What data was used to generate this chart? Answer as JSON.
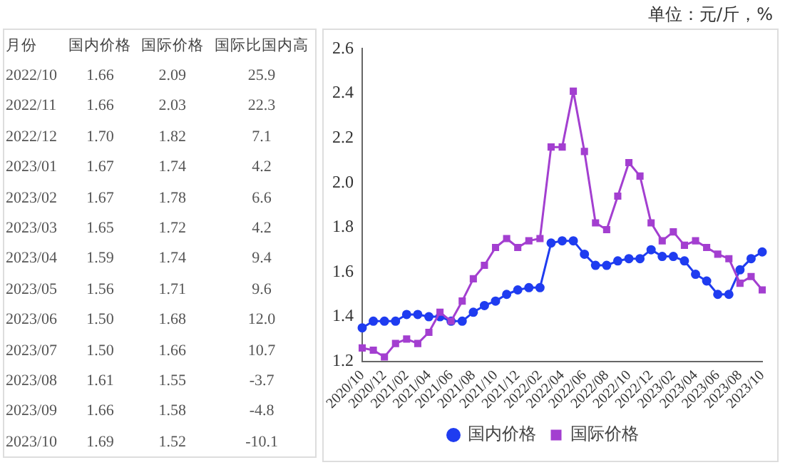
{
  "chart_data": {
    "type": "line",
    "categories": [
      "2020/10",
      null,
      "2020/12",
      null,
      "2021/02",
      null,
      "2021/04",
      null,
      "2021/06",
      null,
      "2021/08",
      null,
      "2021/10",
      null,
      "2021/12",
      null,
      "2022/02",
      null,
      "2022/04",
      null,
      "2022/06",
      null,
      "2022/08",
      null,
      "2022/10",
      null,
      "2022/12",
      null,
      "2023/02",
      null,
      "2023/04",
      null,
      "2023/06",
      null,
      "2023/08",
      null,
      "2023/10"
    ],
    "series": [
      {
        "name": "国内价格",
        "color": "#1f3cf0",
        "marker": "circle",
        "values": [
          1.35,
          1.38,
          1.38,
          1.38,
          1.41,
          1.41,
          1.4,
          1.4,
          1.38,
          1.38,
          1.42,
          1.45,
          1.47,
          1.5,
          1.52,
          1.53,
          1.53,
          1.73,
          1.74,
          1.74,
          1.68,
          1.63,
          1.63,
          1.65,
          1.66,
          1.66,
          1.7,
          1.67,
          1.67,
          1.65,
          1.59,
          1.56,
          1.5,
          1.5,
          1.61,
          1.66,
          1.69
        ]
      },
      {
        "name": "国际价格",
        "color": "#a33fd0",
        "marker": "square",
        "values": [
          1.26,
          1.25,
          1.22,
          1.28,
          1.3,
          1.28,
          1.33,
          1.42,
          1.38,
          1.47,
          1.57,
          1.63,
          1.71,
          1.75,
          1.71,
          1.74,
          1.75,
          2.16,
          2.16,
          2.41,
          2.14,
          1.82,
          1.79,
          1.94,
          2.09,
          2.03,
          1.82,
          1.74,
          1.78,
          1.72,
          1.74,
          1.71,
          1.68,
          1.66,
          1.55,
          1.58,
          1.52
        ]
      }
    ],
    "ylim": [
      1.2,
      2.6
    ],
    "yticks": [
      {
        "value": 1.2,
        "label": "1.2"
      },
      {
        "value": 1.4,
        "label": "1.4"
      },
      {
        "value": 1.6,
        "label": "1.6"
      },
      {
        "value": 1.8,
        "label": "1.8"
      },
      {
        "value": 2.0,
        "label": "2.0"
      },
      {
        "value": 2.2,
        "label": "2.2"
      },
      {
        "value": 2.4,
        "label": "2.4"
      },
      {
        "value": 2.6,
        "label": "2.6"
      }
    ],
    "grid": false,
    "legend": "bottom",
    "line_style": "solid",
    "annotations": [
      "单位：元/斤，%",
      "月份",
      "国内价格",
      "国际价格",
      "国际比国内高",
      "2022/10",
      "1.66",
      "2.09",
      "25.9",
      "2022/11",
      "1.66",
      "2.03",
      "22.3",
      "2022/12",
      "1.70",
      "1.82",
      "7.1",
      "2023/01",
      "1.67",
      "1.74",
      "4.2",
      "2023/02",
      "1.67",
      "1.78",
      "6.6",
      "2023/03",
      "1.65",
      "1.72",
      "4.2",
      "2023/04",
      "1.59",
      "1.74",
      "9.4",
      "2023/05",
      "1.56",
      "1.71",
      "9.6",
      "2023/06",
      "1.50",
      "1.68",
      "12.0",
      "2023/07",
      "1.50",
      "1.66",
      "10.7",
      "2023/08",
      "1.61",
      "1.55",
      "-3.7",
      "2023/09",
      "1.66",
      "1.58",
      "-4.8",
      "2023/10",
      "1.69",
      "1.52",
      "-10.1"
    ]
  }
}
